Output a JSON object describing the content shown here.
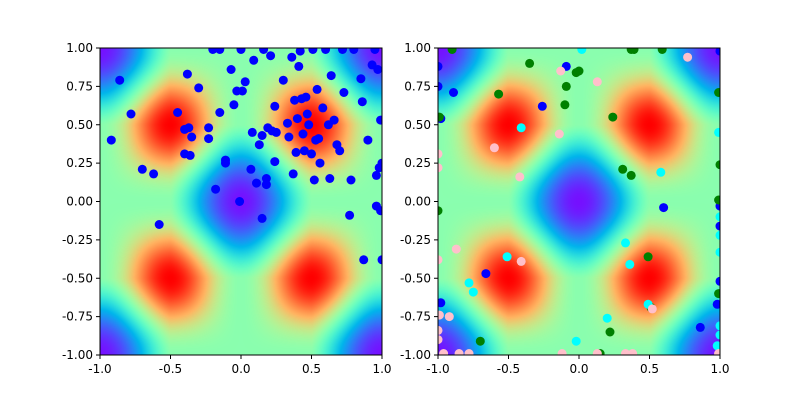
{
  "chart_data": [
    {
      "type": "scatter",
      "background": "rainbow-colormap field of sin(pi*x)*sin(pi*y) style checker peaks",
      "xlim": [
        -1,
        1
      ],
      "ylim": [
        -1,
        1
      ],
      "xticks": [
        "-1.0",
        "-0.5",
        "0.0",
        "0.5",
        "1.0"
      ],
      "yticks": [
        "-1.00",
        "-0.75",
        "-0.50",
        "-0.25",
        "0.00",
        "0.25",
        "0.50",
        "0.75",
        "1.00"
      ],
      "series": [
        {
          "color": "#0000ff",
          "points": [
            [
              -0.92,
              0.4
            ],
            [
              -0.86,
              0.79
            ],
            [
              -0.78,
              0.57
            ],
            [
              -0.7,
              0.21
            ],
            [
              -0.62,
              0.18
            ],
            [
              -0.58,
              -0.15
            ],
            [
              -0.45,
              0.58
            ],
            [
              -0.4,
              0.47
            ],
            [
              -0.38,
              0.83
            ],
            [
              -0.37,
              0.48
            ],
            [
              -0.4,
              0.31
            ],
            [
              -0.35,
              0.42
            ],
            [
              -0.36,
              0.3
            ],
            [
              -0.3,
              0.74
            ],
            [
              -0.23,
              0.48
            ],
            [
              -0.23,
              0.41
            ],
            [
              -0.2,
              0.99
            ],
            [
              -0.15,
              0.99
            ],
            [
              -0.15,
              0.58
            ],
            [
              -0.18,
              0.08
            ],
            [
              -0.11,
              0.27
            ],
            [
              -0.11,
              0.25
            ],
            [
              -0.07,
              0.86
            ],
            [
              -0.05,
              0.63
            ],
            [
              -0.03,
              0.72
            ],
            [
              -0.01,
              0.0
            ],
            [
              0.0,
              0.99
            ],
            [
              0.01,
              0.72
            ],
            [
              0.03,
              0.78
            ],
            [
              0.07,
              0.21
            ],
            [
              0.08,
              0.45
            ],
            [
              0.09,
              0.92
            ],
            [
              0.11,
              0.12
            ],
            [
              0.13,
              0.37
            ],
            [
              0.15,
              -0.11
            ],
            [
              0.15,
              0.43
            ],
            [
              0.16,
              0.99
            ],
            [
              0.18,
              0.15
            ],
            [
              0.18,
              0.11
            ],
            [
              0.19,
              0.48
            ],
            [
              0.21,
              0.95
            ],
            [
              0.22,
              0.46
            ],
            [
              0.24,
              0.62
            ],
            [
              0.25,
              0.45
            ],
            [
              0.24,
              0.26
            ],
            [
              0.3,
              0.79
            ],
            [
              0.33,
              0.51
            ],
            [
              0.34,
              0.42
            ],
            [
              0.36,
              0.94
            ],
            [
              0.37,
              0.18
            ],
            [
              0.38,
              0.66
            ],
            [
              0.39,
              0.32
            ],
            [
              0.4,
              0.54
            ],
            [
              0.41,
              0.88
            ],
            [
              0.42,
              0.98
            ],
            [
              0.43,
              0.67
            ],
            [
              0.44,
              0.44
            ],
            [
              0.45,
              0.33
            ],
            [
              0.46,
              0.68
            ],
            [
              0.47,
              0.57
            ],
            [
              0.48,
              0.5
            ],
            [
              0.5,
              0.31
            ],
            [
              0.51,
              0.99
            ],
            [
              0.52,
              0.14
            ],
            [
              0.53,
              0.4
            ],
            [
              0.54,
              0.73
            ],
            [
              0.55,
              0.41
            ],
            [
              0.56,
              0.25
            ],
            [
              0.58,
              0.61
            ],
            [
              0.6,
              0.99
            ],
            [
              0.62,
              0.5
            ],
            [
              0.63,
              0.15
            ],
            [
              0.64,
              0.82
            ],
            [
              0.66,
              0.53
            ],
            [
              0.68,
              0.37
            ],
            [
              0.7,
              0.33
            ],
            [
              0.72,
              0.99
            ],
            [
              0.73,
              0.71
            ],
            [
              0.77,
              -0.09
            ],
            [
              0.78,
              0.14
            ],
            [
              0.8,
              0.99
            ],
            [
              0.85,
              0.8
            ],
            [
              0.86,
              0.65
            ],
            [
              0.87,
              -0.38
            ],
            [
              0.93,
              0.89
            ],
            [
              0.95,
              0.99
            ],
            [
              0.96,
              0.17
            ],
            [
              0.96,
              -0.03
            ],
            [
              0.97,
              0.86
            ],
            [
              0.98,
              0.22
            ],
            [
              0.99,
              0.53
            ],
            [
              0.99,
              -0.06
            ],
            [
              1.0,
              0.25
            ],
            [
              1.0,
              -0.38
            ],
            [
              0.9,
              0.4
            ]
          ]
        }
      ]
    },
    {
      "type": "scatter",
      "background": "rainbow-colormap field of sin(pi*x)*sin(pi*y) style checker peaks",
      "xlim": [
        -1,
        1
      ],
      "ylim": [
        -1,
        1
      ],
      "xticks": [
        "-1.0",
        "-0.5",
        "0.0",
        "0.5",
        "1.0"
      ],
      "yticks": [
        "-1.00",
        "-0.75",
        "-0.50",
        "-0.25",
        "0.00",
        "0.25",
        "0.50",
        "0.75",
        "1.00"
      ],
      "series": [
        {
          "color": "#0000ff",
          "points": [
            [
              -1.0,
              0.88
            ],
            [
              -1.0,
              0.75
            ],
            [
              -0.89,
              0.71
            ],
            [
              -0.66,
              -0.47
            ],
            [
              -0.26,
              0.62
            ],
            [
              -0.09,
              0.88
            ],
            [
              0.6,
              -0.04
            ],
            [
              0.86,
              -0.82
            ],
            [
              1.0,
              0.98
            ],
            [
              1.0,
              -0.03
            ],
            [
              1.0,
              -0.16
            ],
            [
              -0.98,
              -0.66
            ],
            [
              -0.98,
              0.54
            ],
            [
              0.98,
              -0.67
            ],
            [
              1.0,
              -0.52
            ]
          ]
        },
        {
          "color": "#008000",
          "points": [
            [
              -0.9,
              0.99
            ],
            [
              -0.7,
              -0.91
            ],
            [
              -0.57,
              0.7
            ],
            [
              -0.35,
              0.9
            ],
            [
              -0.1,
              0.63
            ],
            [
              -0.09,
              0.75
            ],
            [
              -0.02,
              0.84
            ],
            [
              0.0,
              0.85
            ],
            [
              0.15,
              -0.99
            ],
            [
              0.22,
              -0.85
            ],
            [
              0.24,
              0.55
            ],
            [
              0.31,
              0.21
            ],
            [
              0.37,
              0.17
            ],
            [
              0.37,
              0.99
            ],
            [
              0.39,
              0.99
            ],
            [
              0.49,
              -0.36
            ],
            [
              0.51,
              -0.69
            ],
            [
              0.59,
              0.99
            ],
            [
              1.0,
              0.24
            ],
            [
              0.99,
              -0.6
            ],
            [
              0.99,
              0.71
            ],
            [
              0.99,
              0.01
            ],
            [
              -1.0,
              -0.06
            ],
            [
              -0.99,
              0.55
            ]
          ]
        },
        {
          "color": "#00ffff",
          "points": [
            [
              -0.78,
              -0.53
            ],
            [
              -0.75,
              -0.59
            ],
            [
              -0.51,
              -0.36
            ],
            [
              -0.41,
              0.48
            ],
            [
              -0.02,
              -0.91
            ],
            [
              0.2,
              -0.76
            ],
            [
              0.33,
              -0.27
            ],
            [
              0.36,
              -0.41
            ],
            [
              0.49,
              -0.67
            ],
            [
              0.58,
              0.19
            ],
            [
              0.99,
              0.45
            ],
            [
              1.0,
              -0.1
            ],
            [
              1.0,
              -0.22
            ],
            [
              1.0,
              -0.33
            ],
            [
              1.0,
              -0.81
            ],
            [
              1.0,
              -0.87
            ],
            [
              0.98,
              -0.94
            ],
            [
              0.02,
              0.99
            ],
            [
              1.0,
              -0.99
            ]
          ]
        },
        {
          "color": "#ffc0cb",
          "points": [
            [
              -1.0,
              0.31
            ],
            [
              -1.0,
              -0.9
            ],
            [
              -1.0,
              -0.84
            ],
            [
              -0.99,
              -0.74
            ],
            [
              -0.96,
              -0.99
            ],
            [
              -0.92,
              -0.75
            ],
            [
              -0.87,
              -0.31
            ],
            [
              -0.85,
              -0.99
            ],
            [
              -0.78,
              -0.99
            ],
            [
              -0.6,
              0.35
            ],
            [
              -0.42,
              0.16
            ],
            [
              -0.41,
              -0.39
            ],
            [
              -0.14,
              0.44
            ],
            [
              -0.13,
              0.85
            ],
            [
              -0.12,
              -0.99
            ],
            [
              0.13,
              0.78
            ],
            [
              0.13,
              -0.99
            ],
            [
              0.33,
              -0.99
            ],
            [
              0.38,
              -0.99
            ],
            [
              0.52,
              -0.7
            ],
            [
              0.77,
              0.94
            ],
            [
              0.99,
              -0.99
            ],
            [
              -1.0,
              -0.38
            ],
            [
              -1.0,
              0.22
            ]
          ]
        }
      ]
    }
  ]
}
